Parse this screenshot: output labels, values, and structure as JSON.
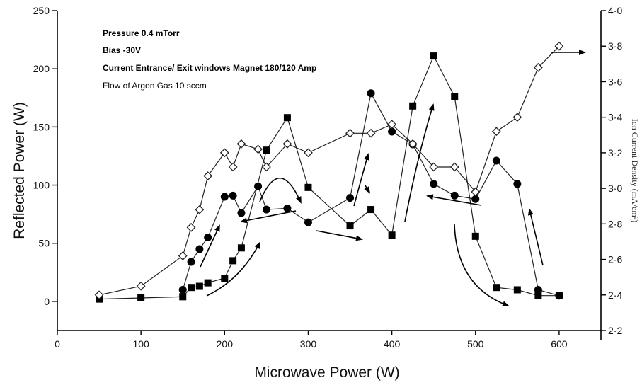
{
  "chart_data": {
    "type": "line",
    "title": "",
    "xlabel": "Microwave Power (W)",
    "ylabel": "Reflected Power (W)",
    "y2label": "Ion Current Density (mA/cm²)",
    "xlim": [
      0,
      650
    ],
    "ylim": [
      -25,
      250
    ],
    "y2lim": [
      2.2,
      4.0
    ],
    "x_ticks": [
      0,
      100,
      200,
      300,
      400,
      500,
      600
    ],
    "y_ticks": [
      0,
      50,
      100,
      150,
      200,
      250
    ],
    "y2_ticks": [
      "2·2",
      "2·4",
      "2·6",
      "2·8",
      "3·0",
      "3·2",
      "3·4",
      "3·6",
      "3·8",
      "4·0"
    ],
    "y2_tick_values": [
      2.2,
      2.4,
      2.6,
      2.8,
      3.0,
      3.2,
      3.4,
      3.6,
      3.8,
      4.0
    ],
    "grid": false,
    "annotations": [
      "Pressure 0.4 mTorr",
      "Bias -30V",
      "Current Entrance/ Exit windows Magnet 180/120 Amp",
      "Flow of Argon Gas 10 sccm"
    ],
    "series": [
      {
        "marker": "filled-square",
        "axis": "left",
        "x": [
          50,
          100,
          150,
          160,
          170,
          180,
          200,
          210,
          220,
          250,
          275,
          300,
          350,
          375,
          400,
          425,
          450,
          475,
          500,
          525,
          550,
          575,
          600
        ],
        "y": [
          2,
          3,
          4,
          12,
          13,
          16,
          20,
          35,
          46,
          130,
          158,
          98,
          65,
          79,
          57,
          168,
          211,
          176,
          56,
          12,
          10,
          5,
          5
        ]
      },
      {
        "marker": "filled-circle",
        "axis": "left",
        "x": [
          150,
          160,
          170,
          180,
          200,
          210,
          220,
          240,
          250,
          275,
          300,
          350,
          375,
          400,
          425,
          450,
          475,
          500,
          525,
          550,
          575,
          600
        ],
        "y": [
          10,
          34,
          45,
          55,
          90,
          91,
          76,
          99,
          79,
          80,
          68,
          89,
          179,
          146,
          135,
          101,
          91,
          88,
          121,
          101,
          10,
          5
        ]
      },
      {
        "marker": "open-diamond",
        "axis": "right",
        "x": [
          50,
          100,
          150,
          160,
          170,
          180,
          200,
          210,
          220,
          240,
          250,
          275,
          300,
          350,
          375,
          400,
          425,
          450,
          475,
          500,
          525,
          550,
          575,
          600
        ],
        "y": [
          2.4,
          2.45,
          2.62,
          2.78,
          2.88,
          3.07,
          3.2,
          3.12,
          3.25,
          3.22,
          3.12,
          3.25,
          3.2,
          3.31,
          3.31,
          3.36,
          3.25,
          3.12,
          3.12,
          2.98,
          3.32,
          3.4,
          3.68,
          3.8
        ]
      }
    ]
  }
}
